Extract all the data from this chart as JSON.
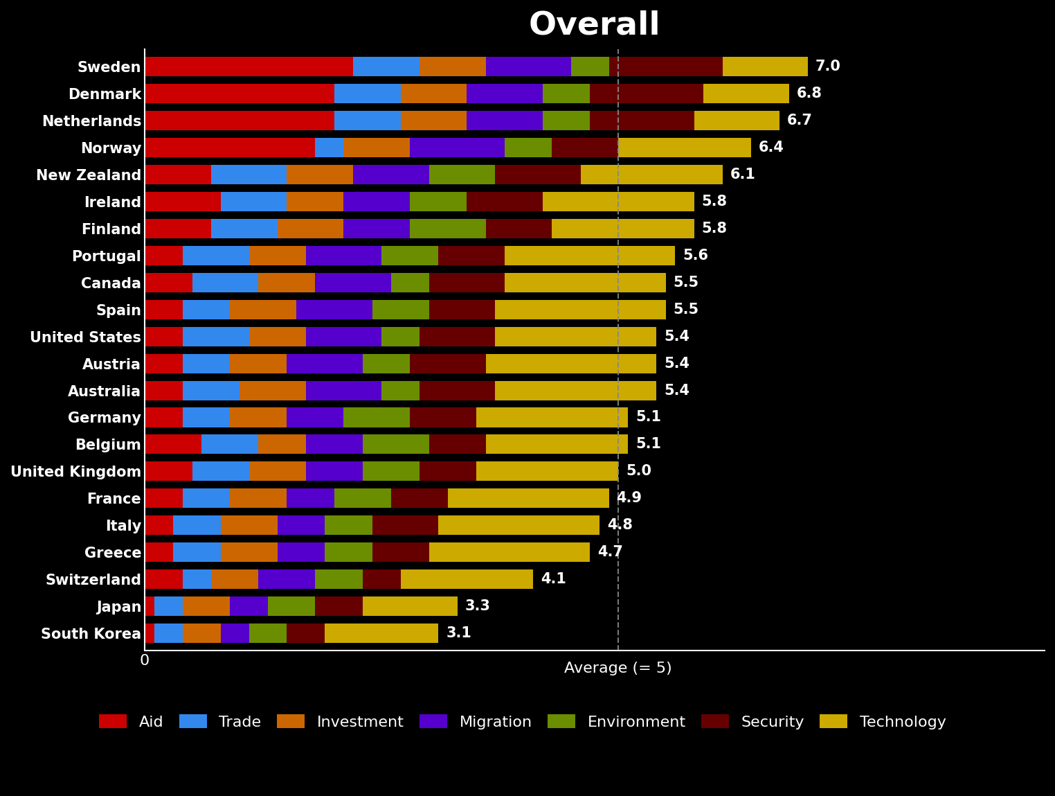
{
  "title": "Overall",
  "background_color": "#000000",
  "title_color": "#ffffff",
  "title_fontsize": 34,
  "categories": [
    "Sweden",
    "Denmark",
    "Netherlands",
    "Norway",
    "New Zealand",
    "Ireland",
    "Finland",
    "Portugal",
    "Canada",
    "Spain",
    "United States",
    "Austria",
    "Australia",
    "Germany",
    "Belgium",
    "United Kingdom",
    "France",
    "Italy",
    "Greece",
    "Switzerland",
    "Japan",
    "South Korea"
  ],
  "totals": [
    7.0,
    6.8,
    6.7,
    6.4,
    6.1,
    5.8,
    5.8,
    5.6,
    5.5,
    5.5,
    5.4,
    5.4,
    5.4,
    5.1,
    5.1,
    5.0,
    4.9,
    4.8,
    4.7,
    4.1,
    3.3,
    3.1
  ],
  "segments": {
    "Aid": [
      2.2,
      2.0,
      2.0,
      1.8,
      0.7,
      0.8,
      0.7,
      0.4,
      0.5,
      0.4,
      0.4,
      0.4,
      0.4,
      0.4,
      0.6,
      0.5,
      0.4,
      0.3,
      0.3,
      0.4,
      0.1,
      0.1
    ],
    "Trade": [
      0.7,
      0.7,
      0.7,
      0.3,
      0.8,
      0.7,
      0.7,
      0.7,
      0.7,
      0.5,
      0.7,
      0.5,
      0.6,
      0.5,
      0.6,
      0.6,
      0.5,
      0.5,
      0.5,
      0.3,
      0.3,
      0.3
    ],
    "Investment": [
      0.7,
      0.7,
      0.7,
      0.7,
      0.7,
      0.6,
      0.7,
      0.6,
      0.6,
      0.7,
      0.6,
      0.6,
      0.7,
      0.6,
      0.5,
      0.6,
      0.6,
      0.6,
      0.6,
      0.5,
      0.5,
      0.4
    ],
    "Migration": [
      0.9,
      0.8,
      0.8,
      1.0,
      0.8,
      0.7,
      0.7,
      0.8,
      0.8,
      0.8,
      0.8,
      0.8,
      0.8,
      0.6,
      0.6,
      0.6,
      0.5,
      0.5,
      0.5,
      0.6,
      0.4,
      0.3
    ],
    "Environment": [
      0.4,
      0.5,
      0.5,
      0.5,
      0.7,
      0.6,
      0.8,
      0.6,
      0.4,
      0.6,
      0.4,
      0.5,
      0.4,
      0.7,
      0.7,
      0.6,
      0.6,
      0.5,
      0.5,
      0.5,
      0.5,
      0.4
    ],
    "Security": [
      1.2,
      1.2,
      1.1,
      0.7,
      0.9,
      0.8,
      0.7,
      0.7,
      0.8,
      0.7,
      0.8,
      0.8,
      0.8,
      0.7,
      0.6,
      0.6,
      0.6,
      0.7,
      0.6,
      0.4,
      0.5,
      0.4
    ],
    "Technology": [
      0.9,
      0.9,
      0.9,
      1.4,
      1.5,
      1.6,
      1.5,
      1.8,
      1.7,
      1.8,
      1.7,
      1.8,
      1.7,
      1.6,
      1.5,
      1.5,
      1.7,
      1.7,
      1.7,
      1.4,
      1.0,
      1.2
    ]
  },
  "colors": {
    "Aid": "#cc0000",
    "Trade": "#3388ee",
    "Investment": "#cc6600",
    "Migration": "#5500cc",
    "Environment": "#6b8e00",
    "Security": "#660000",
    "Technology": "#ccaa00"
  },
  "average_label": "Average (= 5)",
  "average_value": 5.0,
  "label_fontsize": 16,
  "tick_fontsize": 16,
  "legend_fontsize": 16
}
